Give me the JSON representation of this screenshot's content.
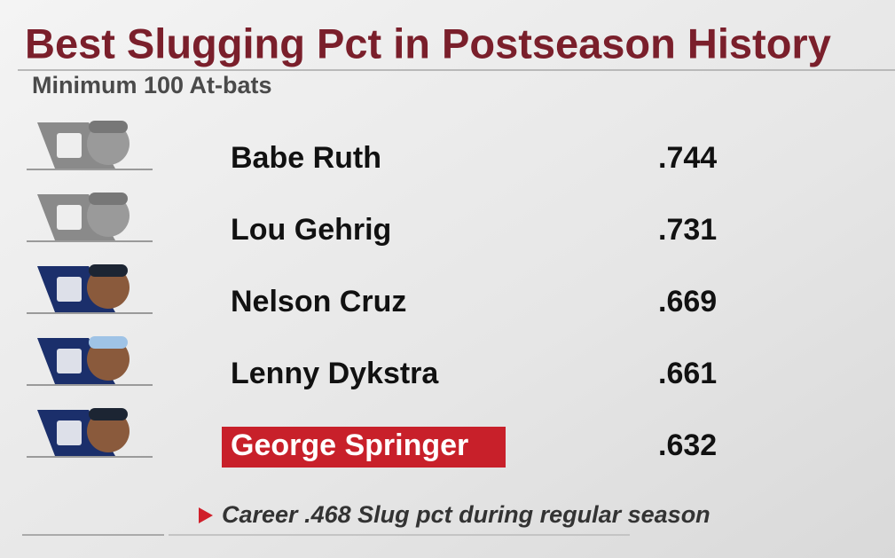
{
  "header": {
    "title": "Best Slugging Pct in Postseason History",
    "subtitle": "Minimum 100 At-bats"
  },
  "table": {
    "rows": [
      {
        "name": "Babe Ruth",
        "value": ".744"
      },
      {
        "name": "Lou Gehrig",
        "value": ".731"
      },
      {
        "name": "Nelson Cruz",
        "value": ".669"
      },
      {
        "name": "Lenny Dykstra",
        "value": ".661"
      },
      {
        "name": "George Springer",
        "value": ".632"
      }
    ]
  },
  "footnote": "Career .468 Slug pct during regular season"
}
